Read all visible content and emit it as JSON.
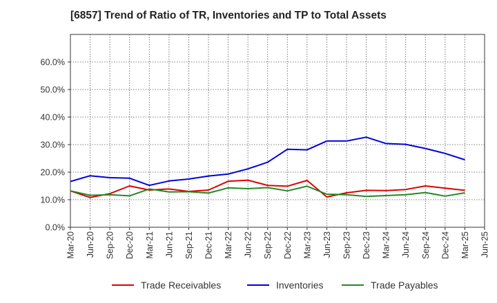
{
  "chart_data": {
    "type": "line",
    "title": "[6857]  Trend of Ratio of TR, Inventories and TP to Total Assets",
    "xlabel": "",
    "ylabel": "",
    "ylim": [
      0,
      70
    ],
    "y_ticks": [
      0,
      10,
      20,
      30,
      40,
      50,
      60
    ],
    "y_tick_labels": [
      "0.0%",
      "10.0%",
      "20.0%",
      "30.0%",
      "40.0%",
      "50.0%",
      "60.0%"
    ],
    "x": [
      "Mar-20",
      "Jun-20",
      "Sep-20",
      "Dec-20",
      "Mar-21",
      "Jun-21",
      "Sep-21",
      "Dec-21",
      "Mar-22",
      "Jun-22",
      "Sep-22",
      "Dec-22",
      "Mar-23",
      "Jun-23",
      "Sep-23",
      "Dec-23",
      "Mar-24",
      "Jun-24",
      "Sep-24",
      "Dec-24",
      "Mar-25",
      "Jun-25"
    ],
    "grid": true,
    "legend_position": "bottom",
    "series": [
      {
        "name": "Trade Receivables",
        "color": "#dd0000",
        "values": [
          13.2,
          10.8,
          12.2,
          15.0,
          13.5,
          13.9,
          13.0,
          13.5,
          16.7,
          17.1,
          15.2,
          14.9,
          17.0,
          11.0,
          12.5,
          13.4,
          13.3,
          13.7,
          15.0,
          14.2,
          13.4,
          null
        ]
      },
      {
        "name": "Inventories",
        "color": "#0000dd",
        "values": [
          16.6,
          18.7,
          18.0,
          17.8,
          15.2,
          16.8,
          17.5,
          18.6,
          19.3,
          21.2,
          23.6,
          28.3,
          28.1,
          31.3,
          31.3,
          32.7,
          30.4,
          30.1,
          28.6,
          26.8,
          24.5,
          null
        ]
      },
      {
        "name": "Trade Payables",
        "color": "#228822",
        "values": [
          13.2,
          11.6,
          11.8,
          11.4,
          13.9,
          12.8,
          12.9,
          12.4,
          14.3,
          14.0,
          14.4,
          13.2,
          14.9,
          12.0,
          11.8,
          11.2,
          11.5,
          11.8,
          12.6,
          11.3,
          12.5,
          null
        ]
      }
    ]
  }
}
